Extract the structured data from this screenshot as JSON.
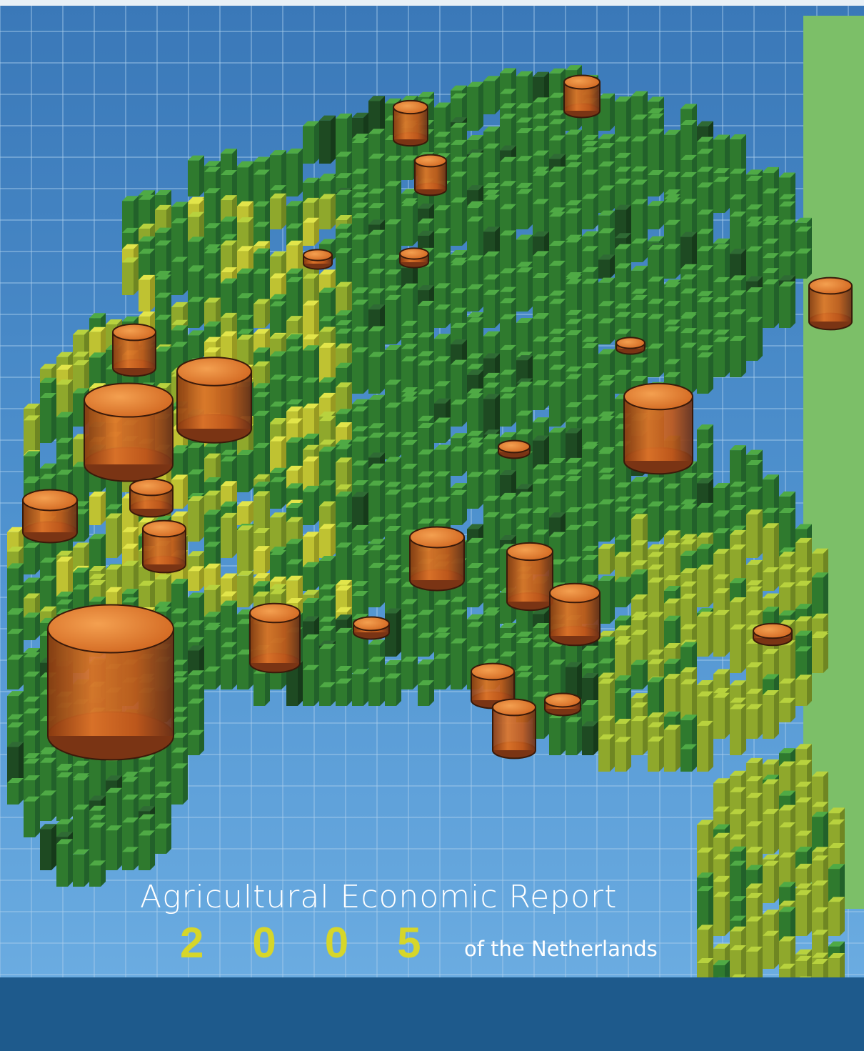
{
  "cover": {
    "title": "Agricultural Economic Report",
    "year": "2005",
    "subtitle": "of the Netherlands"
  }
}
